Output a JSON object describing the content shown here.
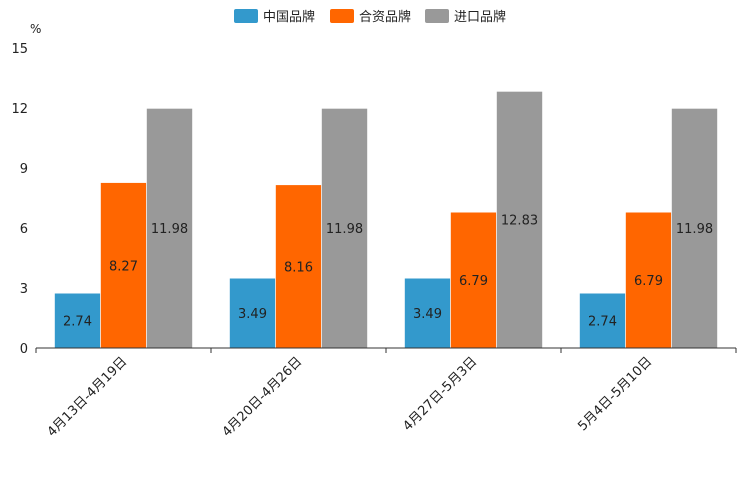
{
  "chart_data": {
    "type": "bar",
    "title": "",
    "xlabel": "",
    "ylabel": "",
    "unit": "%",
    "ylim": [
      0,
      15
    ],
    "yticks": [
      0,
      3,
      6,
      9,
      12,
      15
    ],
    "grid": false,
    "legend_position": "top-center",
    "categories": [
      "4月13日-4月19日",
      "4月20日-4月26日",
      "4月27日-5月3日",
      "5月4日-5月10日"
    ],
    "series": [
      {
        "name": "中国品牌",
        "color": "#3399cc",
        "values": [
          2.74,
          3.49,
          3.49,
          2.74
        ],
        "labels": [
          "2.74",
          "3.49",
          "3.49",
          "2.74"
        ]
      },
      {
        "name": "合资品牌",
        "color": "#ff6600",
        "values": [
          8.27,
          8.16,
          6.79,
          6.79
        ],
        "labels": [
          "8.27",
          "8.16",
          "6.79",
          "6.79"
        ]
      },
      {
        "name": "进口品牌",
        "color": "#999999",
        "values": [
          11.98,
          11.98,
          12.83,
          11.98
        ],
        "labels": [
          "11.98",
          "11.98",
          "12.83",
          "11.98"
        ]
      }
    ]
  }
}
